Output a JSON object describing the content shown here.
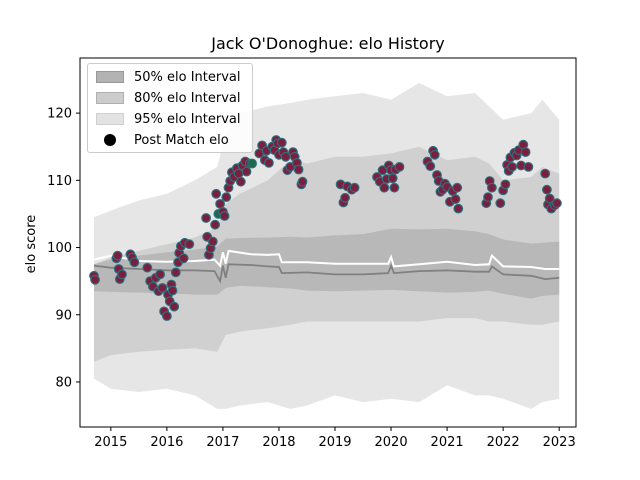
{
  "chart_data": {
    "type": "scatter",
    "title": "Jack O'Donoghue: elo History",
    "xlabel": "",
    "ylabel": "elo score",
    "xlim": [
      2014.45,
      2023.3
    ],
    "ylim": [
      73.3,
      128.2
    ],
    "x_ticks": [
      2015,
      2016,
      2017,
      2018,
      2019,
      2020,
      2021,
      2022,
      2023
    ],
    "y_ticks": [
      80,
      90,
      100,
      110,
      120
    ],
    "legend": [
      "50% elo Interval",
      "80% elo Interval",
      "95% elo Interval",
      "Post Match elo"
    ],
    "legend_position": "upper-left",
    "colors": {
      "band95": "#e6e6e6",
      "band80": "#d0d0d0",
      "band50": "#b8b8b8",
      "median_line": "#808080",
      "mean_line": "#ffffff",
      "point_fill_default": "#7a1f3d",
      "point_fill_alt": "#1a6b4a",
      "point_edge": "#2f6f7f"
    },
    "bands": {
      "x": [
        2014.7,
        2015.0,
        2015.5,
        2016.0,
        2016.5,
        2016.9,
        2017.05,
        2017.3,
        2017.8,
        2018.2,
        2018.5,
        2019.0,
        2019.5,
        2020.0,
        2020.5,
        2021.0,
        2021.5,
        2021.75,
        2022.0,
        2022.5,
        2022.7,
        2023.0
      ],
      "p95_hi": [
        104.5,
        105.5,
        107.0,
        108.0,
        110.0,
        112.0,
        117.0,
        120.0,
        121.0,
        121.5,
        122.0,
        122.5,
        123.0,
        122.0,
        124.5,
        122.5,
        123.0,
        121.0,
        119.0,
        120.0,
        122.0,
        119.0
      ],
      "p80_hi": [
        97.5,
        98.5,
        99.5,
        100.5,
        101.5,
        103.0,
        106.5,
        108.0,
        110.0,
        113.0,
        112.5,
        113.5,
        113.5,
        114.0,
        115.0,
        113.0,
        113.5,
        112.5,
        110.0,
        110.5,
        112.0,
        111.0
      ],
      "p50_hi": [
        97.5,
        98.2,
        98.8,
        99.3,
        99.7,
        100.2,
        101.3,
        101.4,
        101.5,
        101.6,
        101.5,
        101.8,
        102.0,
        102.8,
        102.7,
        102.8,
        102.4,
        102.0,
        101.2,
        100.6,
        100.7,
        100.9
      ],
      "p50_lo": [
        93.5,
        93.4,
        93.3,
        93.2,
        93.0,
        93.0,
        94.0,
        94.3,
        94.1,
        93.9,
        93.6,
        93.5,
        93.6,
        93.7,
        93.5,
        93.3,
        93.4,
        93.6,
        93.1,
        92.4,
        92.8,
        93.0
      ],
      "p80_lo": [
        83.0,
        84.0,
        84.5,
        84.8,
        85.0,
        84.5,
        87.0,
        87.5,
        88.0,
        88.5,
        89.0,
        89.0,
        89.0,
        89.0,
        89.0,
        89.5,
        89.5,
        89.0,
        89.0,
        88.5,
        88.5,
        89.0
      ],
      "p95_lo": [
        80.5,
        79.0,
        78.5,
        79.0,
        78.0,
        76.0,
        76.0,
        76.5,
        77.0,
        76.0,
        76.5,
        78.0,
        77.0,
        77.5,
        77.0,
        79.5,
        78.0,
        78.0,
        77.5,
        76.0,
        77.0,
        77.5
      ]
    },
    "median_line": {
      "x": [
        2014.7,
        2015.0,
        2015.5,
        2016.0,
        2016.5,
        2016.85,
        2016.95,
        2017.0,
        2017.05,
        2017.1,
        2017.5,
        2017.8,
        2018.0,
        2018.05,
        2018.5,
        2019.0,
        2019.5,
        2019.95,
        2020.0,
        2020.05,
        2020.5,
        2021.0,
        2021.5,
        2021.75,
        2021.8,
        2022.0,
        2022.5,
        2022.75,
        2023.0
      ],
      "y": [
        97.3,
        97.0,
        96.8,
        96.6,
        96.6,
        96.5,
        95.0,
        97.3,
        95.5,
        97.5,
        97.4,
        97.2,
        97.1,
        96.2,
        96.3,
        96.0,
        96.0,
        96.2,
        97.3,
        96.2,
        96.5,
        96.6,
        96.4,
        96.4,
        97.2,
        96.0,
        95.8,
        95.3,
        95.5
      ]
    },
    "mean_line": {
      "x": [
        2014.7,
        2015.0,
        2015.5,
        2016.0,
        2016.5,
        2016.85,
        2016.95,
        2017.0,
        2017.05,
        2017.1,
        2017.5,
        2017.8,
        2018.0,
        2018.05,
        2018.5,
        2019.0,
        2019.5,
        2019.95,
        2020.0,
        2020.05,
        2020.5,
        2021.0,
        2021.5,
        2021.75,
        2021.8,
        2022.0,
        2022.5,
        2022.75,
        2023.0
      ],
      "y": [
        98.2,
        98.8,
        98.0,
        97.9,
        98.0,
        98.2,
        97.3,
        99.3,
        97.6,
        99.5,
        99.0,
        98.9,
        99.0,
        97.8,
        97.8,
        97.6,
        97.6,
        97.6,
        98.6,
        97.2,
        97.5,
        97.9,
        97.4,
        97.5,
        98.8,
        97.2,
        97.1,
        96.8,
        96.8
      ]
    },
    "points": [
      {
        "x": 2014.7,
        "y": 95.8
      },
      {
        "x": 2014.72,
        "y": 95.2
      },
      {
        "x": 2015.1,
        "y": 98.4
      },
      {
        "x": 2015.12,
        "y": 98.8
      },
      {
        "x": 2015.14,
        "y": 96.8
      },
      {
        "x": 2015.16,
        "y": 95.3
      },
      {
        "x": 2015.2,
        "y": 96.0
      },
      {
        "x": 2015.35,
        "y": 99.0
      },
      {
        "x": 2015.38,
        "y": 98.5
      },
      {
        "x": 2015.42,
        "y": 97.8
      },
      {
        "x": 2015.65,
        "y": 97.0
      },
      {
        "x": 2015.7,
        "y": 95.0
      },
      {
        "x": 2015.75,
        "y": 94.2
      },
      {
        "x": 2015.8,
        "y": 95.5
      },
      {
        "x": 2015.85,
        "y": 93.5
      },
      {
        "x": 2015.88,
        "y": 96.0
      },
      {
        "x": 2015.92,
        "y": 94.0
      },
      {
        "x": 2015.95,
        "y": 90.5
      },
      {
        "x": 2016.0,
        "y": 89.8
      },
      {
        "x": 2016.02,
        "y": 93.0
      },
      {
        "x": 2016.05,
        "y": 92.0
      },
      {
        "x": 2016.08,
        "y": 94.5
      },
      {
        "x": 2016.1,
        "y": 93.6
      },
      {
        "x": 2016.13,
        "y": 91.2
      },
      {
        "x": 2016.16,
        "y": 96.3
      },
      {
        "x": 2016.2,
        "y": 97.8
      },
      {
        "x": 2016.22,
        "y": 99.2
      },
      {
        "x": 2016.25,
        "y": 100.2
      },
      {
        "x": 2016.3,
        "y": 98.4
      },
      {
        "x": 2016.32,
        "y": 100.7
      },
      {
        "x": 2016.4,
        "y": 100.5
      },
      {
        "x": 2016.7,
        "y": 104.4
      },
      {
        "x": 2016.72,
        "y": 101.6
      },
      {
        "x": 2016.75,
        "y": 98.9
      },
      {
        "x": 2016.78,
        "y": 99.9
      },
      {
        "x": 2016.82,
        "y": 100.9
      },
      {
        "x": 2016.86,
        "y": 103.4
      },
      {
        "x": 2016.88,
        "y": 108.0
      },
      {
        "x": 2016.92,
        "y": 105.0,
        "alt": true
      },
      {
        "x": 2016.95,
        "y": 106.5
      },
      {
        "x": 2017.0,
        "y": 105.3
      },
      {
        "x": 2017.03,
        "y": 104.7
      },
      {
        "x": 2017.06,
        "y": 107.5
      },
      {
        "x": 2017.1,
        "y": 108.9
      },
      {
        "x": 2017.13,
        "y": 109.9
      },
      {
        "x": 2017.16,
        "y": 111.2
      },
      {
        "x": 2017.2,
        "y": 110.5
      },
      {
        "x": 2017.25,
        "y": 111.8
      },
      {
        "x": 2017.28,
        "y": 111.0
      },
      {
        "x": 2017.32,
        "y": 109.8
      },
      {
        "x": 2017.35,
        "y": 112.2
      },
      {
        "x": 2017.4,
        "y": 112.8
      },
      {
        "x": 2017.42,
        "y": 111.3
      },
      {
        "x": 2017.48,
        "y": 112.5
      },
      {
        "x": 2017.52,
        "y": 112.5,
        "alt": true
      },
      {
        "x": 2017.65,
        "y": 114.0
      },
      {
        "x": 2017.7,
        "y": 115.2
      },
      {
        "x": 2017.75,
        "y": 113.0
      },
      {
        "x": 2017.78,
        "y": 114.4
      },
      {
        "x": 2017.82,
        "y": 112.6
      },
      {
        "x": 2017.88,
        "y": 115.0
      },
      {
        "x": 2017.92,
        "y": 114.5
      },
      {
        "x": 2017.95,
        "y": 116.0
      },
      {
        "x": 2017.98,
        "y": 115.5
      },
      {
        "x": 2018.0,
        "y": 113.8
      },
      {
        "x": 2018.05,
        "y": 115.6
      },
      {
        "x": 2018.08,
        "y": 114.2
      },
      {
        "x": 2018.12,
        "y": 113.5
      },
      {
        "x": 2018.15,
        "y": 111.5
      },
      {
        "x": 2018.2,
        "y": 112.0
      },
      {
        "x": 2018.25,
        "y": 114.2
      },
      {
        "x": 2018.28,
        "y": 113.5
      },
      {
        "x": 2018.32,
        "y": 112.6
      },
      {
        "x": 2018.35,
        "y": 111.6
      },
      {
        "x": 2018.4,
        "y": 109.4
      },
      {
        "x": 2018.42,
        "y": 109.8
      },
      {
        "x": 2019.1,
        "y": 109.4
      },
      {
        "x": 2019.15,
        "y": 106.7
      },
      {
        "x": 2019.18,
        "y": 107.4
      },
      {
        "x": 2019.22,
        "y": 109.1
      },
      {
        "x": 2019.3,
        "y": 108.6
      },
      {
        "x": 2019.35,
        "y": 108.9
      },
      {
        "x": 2019.75,
        "y": 110.5
      },
      {
        "x": 2019.8,
        "y": 109.8
      },
      {
        "x": 2019.85,
        "y": 111.5
      },
      {
        "x": 2019.88,
        "y": 108.9
      },
      {
        "x": 2019.92,
        "y": 110.2
      },
      {
        "x": 2019.96,
        "y": 112.2
      },
      {
        "x": 2020.0,
        "y": 111.5
      },
      {
        "x": 2020.03,
        "y": 110.3
      },
      {
        "x": 2020.06,
        "y": 108.9
      },
      {
        "x": 2020.08,
        "y": 111.6
      },
      {
        "x": 2020.15,
        "y": 112.0
      },
      {
        "x": 2020.65,
        "y": 112.8
      },
      {
        "x": 2020.7,
        "y": 112.1
      },
      {
        "x": 2020.75,
        "y": 114.4
      },
      {
        "x": 2020.78,
        "y": 113.8
      },
      {
        "x": 2020.82,
        "y": 110.8
      },
      {
        "x": 2020.85,
        "y": 109.9
      },
      {
        "x": 2020.88,
        "y": 108.3
      },
      {
        "x": 2020.92,
        "y": 108.6
      },
      {
        "x": 2020.96,
        "y": 109.5
      },
      {
        "x": 2021.0,
        "y": 109.0
      },
      {
        "x": 2021.05,
        "y": 106.8
      },
      {
        "x": 2021.1,
        "y": 108.4
      },
      {
        "x": 2021.15,
        "y": 107.2
      },
      {
        "x": 2021.18,
        "y": 108.9
      },
      {
        "x": 2021.2,
        "y": 105.8
      },
      {
        "x": 2021.7,
        "y": 106.6
      },
      {
        "x": 2021.73,
        "y": 107.5
      },
      {
        "x": 2021.76,
        "y": 109.9
      },
      {
        "x": 2021.8,
        "y": 108.9
      },
      {
        "x": 2021.95,
        "y": 106.6
      },
      {
        "x": 2022.0,
        "y": 108.5
      },
      {
        "x": 2022.04,
        "y": 109.4
      },
      {
        "x": 2022.07,
        "y": 112.3
      },
      {
        "x": 2022.1,
        "y": 111.4
      },
      {
        "x": 2022.13,
        "y": 113.4
      },
      {
        "x": 2022.16,
        "y": 112.0
      },
      {
        "x": 2022.2,
        "y": 114.1
      },
      {
        "x": 2022.24,
        "y": 113.7
      },
      {
        "x": 2022.28,
        "y": 114.5
      },
      {
        "x": 2022.32,
        "y": 112.2
      },
      {
        "x": 2022.36,
        "y": 115.3
      },
      {
        "x": 2022.4,
        "y": 114.2
      },
      {
        "x": 2022.45,
        "y": 112.0
      },
      {
        "x": 2022.75,
        "y": 111.0
      },
      {
        "x": 2022.78,
        "y": 108.6
      },
      {
        "x": 2022.8,
        "y": 106.4
      },
      {
        "x": 2022.83,
        "y": 107.3
      },
      {
        "x": 2022.86,
        "y": 105.8
      },
      {
        "x": 2022.92,
        "y": 106.3
      },
      {
        "x": 2022.96,
        "y": 106.6
      }
    ]
  }
}
